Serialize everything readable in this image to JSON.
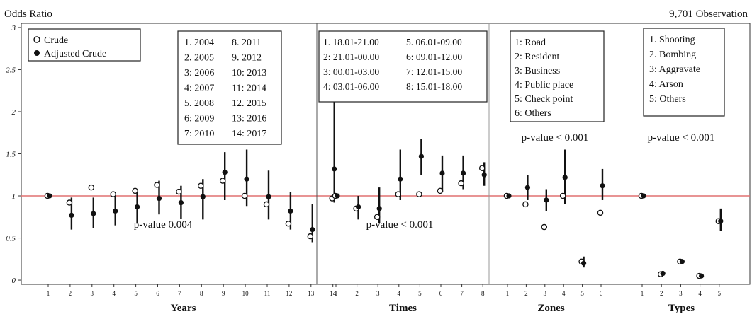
{
  "header": {
    "left": "Odds Ratio",
    "right": "9,701 Observation"
  },
  "legend": {
    "crude": "Crude",
    "adjusted": "Adjusted Crude"
  },
  "chart_data": {
    "type": "scatter",
    "ylabel": "Odds Ratio",
    "ylim": [
      -0.05,
      3.05
    ],
    "y_ticks": [
      "0",
      "0.5",
      "1",
      "1.5",
      "2",
      "2.5",
      "3"
    ],
    "reference_line": 1,
    "reference_line_color": "#e07070",
    "panels": [
      {
        "name": "Years",
        "xlabel": "Years",
        "categories": [
          "1",
          "2",
          "3",
          "4",
          "5",
          "6",
          "7",
          "8",
          "9",
          "10",
          "11",
          "12",
          "13",
          "14"
        ],
        "pvalue": "p-value 0.004",
        "key": [
          [
            "1. 2004",
            "8. 2011"
          ],
          [
            "2. 2005",
            "9. 2012"
          ],
          [
            "3: 2006",
            "10: 2013"
          ],
          [
            "4: 2007",
            "11: 2014"
          ],
          [
            "5. 2008",
            "12. 2015"
          ],
          [
            "6: 2009",
            "13: 2016"
          ],
          [
            "7: 2010",
            "14: 2017"
          ]
        ],
        "crude": [
          1.0,
          0.92,
          1.1,
          1.02,
          1.06,
          1.13,
          1.05,
          1.12,
          1.18,
          1.0,
          0.9,
          0.67,
          0.52,
          0.97
        ],
        "adjusted": [
          1.0,
          0.77,
          0.79,
          0.82,
          0.87,
          0.97,
          0.92,
          0.99,
          1.28,
          1.2,
          0.99,
          0.82,
          0.6,
          1.32
        ],
        "adjusted_ci": [
          [
            1.0,
            1.0
          ],
          [
            0.6,
            0.98
          ],
          [
            0.62,
            0.98
          ],
          [
            0.65,
            1.0
          ],
          [
            0.67,
            1.05
          ],
          [
            0.78,
            1.18
          ],
          [
            0.73,
            1.12
          ],
          [
            0.72,
            1.2
          ],
          [
            0.95,
            1.52
          ],
          [
            0.88,
            1.55
          ],
          [
            0.72,
            1.3
          ],
          [
            0.6,
            1.05
          ],
          [
            0.45,
            0.9
          ],
          [
            0.92,
            2.2
          ]
        ]
      },
      {
        "name": "Times",
        "xlabel": "Times",
        "categories": [
          "1",
          "2",
          "3",
          "4",
          "5",
          "6",
          "7",
          "8"
        ],
        "pvalue": "p-value < 0.001",
        "key": [
          [
            "1. 18.01-21.00",
            "5. 06.01-09.00"
          ],
          [
            "2: 21.01-00.00",
            "6: 09.01-12.00"
          ],
          [
            "3: 00.01-03.00",
            "7: 12.01-15.00"
          ],
          [
            "4: 03.01-06.00",
            "8: 15.01-18.00"
          ]
        ],
        "crude": [
          1.0,
          0.85,
          0.75,
          1.02,
          1.02,
          1.06,
          1.15,
          1.33
        ],
        "adjusted": [
          1.0,
          0.87,
          0.85,
          1.2,
          1.47,
          1.27,
          1.27,
          1.25
        ],
        "adjusted_ci": [
          [
            1.0,
            1.0
          ],
          [
            0.72,
            1.0
          ],
          [
            0.68,
            1.1
          ],
          [
            0.95,
            1.55
          ],
          [
            1.25,
            1.68
          ],
          [
            1.05,
            1.48
          ],
          [
            1.08,
            1.48
          ],
          [
            1.12,
            1.4
          ]
        ]
      },
      {
        "name": "Zones",
        "xlabel": "Zones",
        "categories": [
          "1",
          "2",
          "3",
          "4",
          "5",
          "6"
        ],
        "pvalue": "p-value < 0.001",
        "key": [
          [
            "1: Road"
          ],
          [
            "2: Resident"
          ],
          [
            "3: Business"
          ],
          [
            "4: Public place"
          ],
          [
            "5: Check point"
          ],
          [
            "6: Others"
          ]
        ],
        "crude": [
          1.0,
          0.9,
          0.63,
          1.0,
          0.22,
          0.8
        ],
        "adjusted": [
          1.0,
          1.1,
          0.95,
          1.22,
          0.2,
          1.12
        ],
        "adjusted_ci": [
          [
            1.0,
            1.0
          ],
          [
            0.95,
            1.25
          ],
          [
            0.82,
            1.08
          ],
          [
            0.9,
            1.55
          ],
          [
            0.15,
            0.28
          ],
          [
            0.95,
            1.32
          ]
        ]
      },
      {
        "name": "Types",
        "xlabel": "Types",
        "categories": [
          "1",
          "2",
          "3",
          "4",
          "5"
        ],
        "pvalue": "p-value < 0.001",
        "key": [
          [
            "1. Shooting"
          ],
          [
            "2. Bombing"
          ],
          [
            "3: Aggravate"
          ],
          [
            "4: Arson"
          ],
          [
            "5: Others"
          ]
        ],
        "crude": [
          1.0,
          0.07,
          0.22,
          0.05,
          0.7
        ],
        "adjusted": [
          1.0,
          0.08,
          0.22,
          0.05,
          0.7
        ],
        "adjusted_ci": [
          [
            1.0,
            1.0
          ],
          [
            0.06,
            0.09
          ],
          [
            0.19,
            0.25
          ],
          [
            0.04,
            0.06
          ],
          [
            0.58,
            0.85
          ]
        ]
      }
    ]
  }
}
